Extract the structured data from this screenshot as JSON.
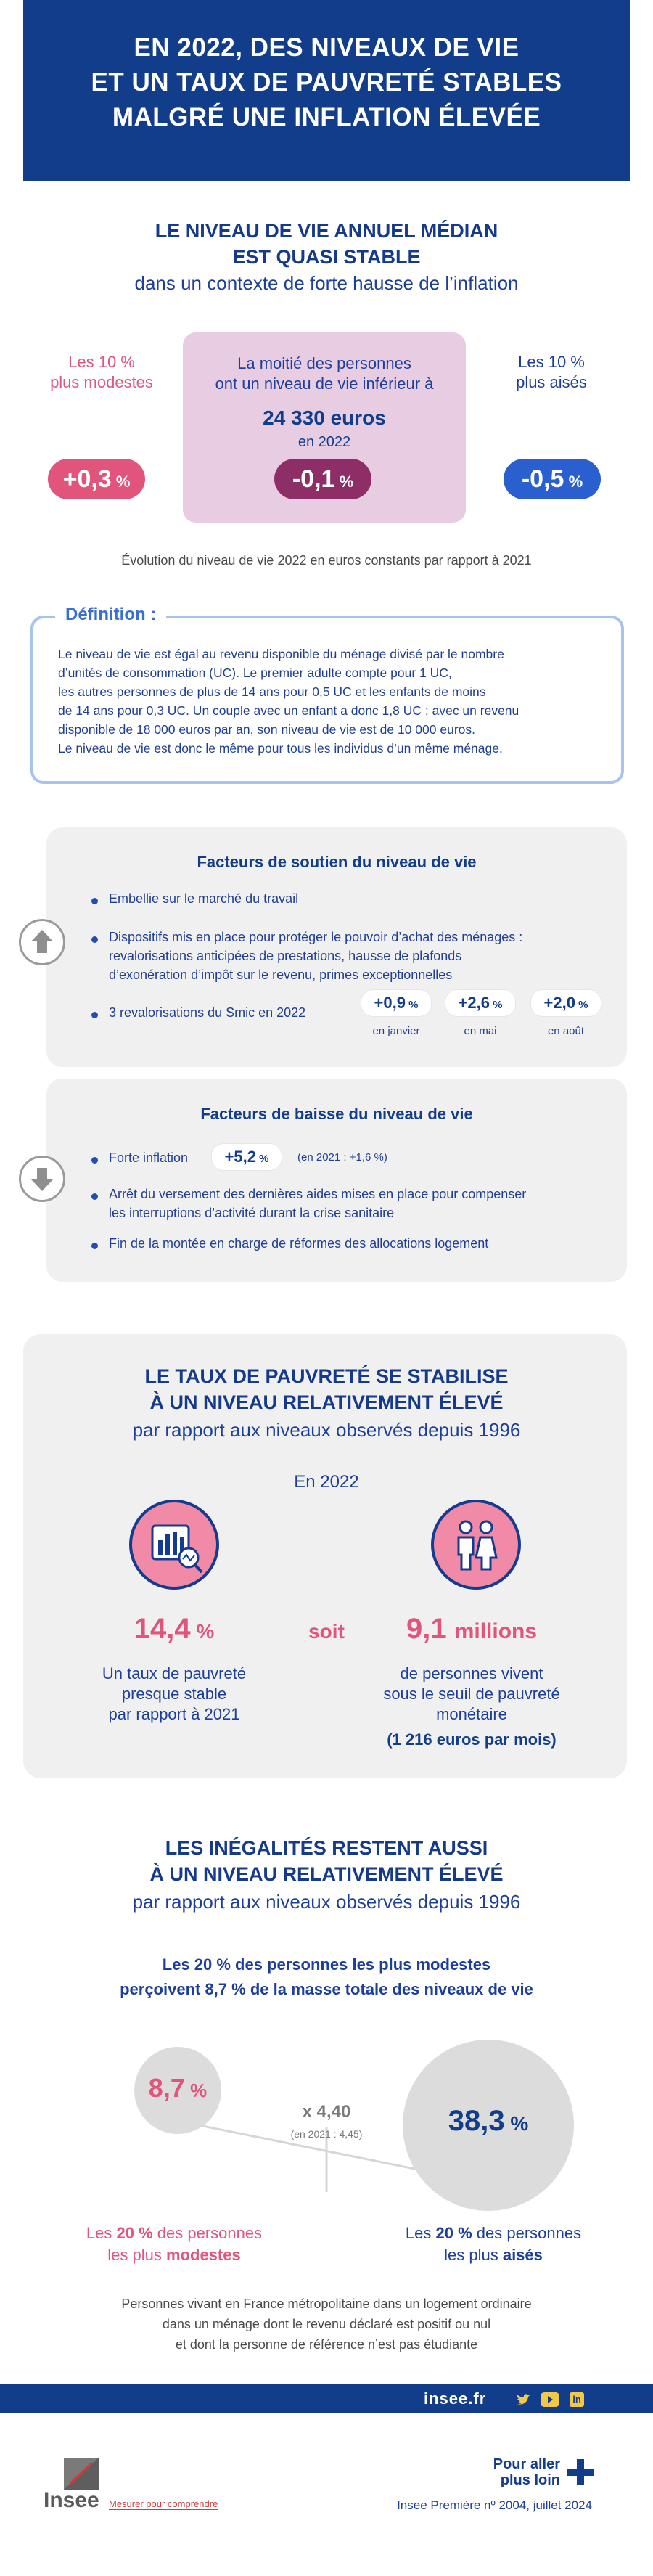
{
  "header": {
    "lines": [
      "EN 2022, DES NIVEAUX DE VIE",
      "ET UN TAUX DE PAUVRETÉ STABLES",
      "MALGRÉ UNE INFLATION ÉLEVÉE"
    ]
  },
  "median": {
    "title_lines": [
      "LE NIVEAU DE VIE ANNUEL MÉDIAN",
      "EST QUASI STABLE"
    ],
    "subtitle": "dans un contexte de forte hausse de l’inflation",
    "left_label": [
      "Les 10 %",
      "plus modestes"
    ],
    "middle_label": [
      "La moitié des personnes",
      "ont un niveau de vie inférieur à"
    ],
    "middle_value": "24 330 euros",
    "middle_year": "en 2022",
    "right_label": [
      "Les 10 %",
      "plus aisés"
    ],
    "left_change": "+0,3",
    "middle_change": "-0,1",
    "right_change": "-0,5",
    "pct": "%",
    "caption": "Évolution du niveau de vie 2022 en euros constants par rapport à 2021"
  },
  "definition": {
    "label": "Définition :",
    "lines": [
      "Le niveau de vie est égal au revenu disponible du ménage divisé par le nombre",
      "d’unités de consommation (UC). Le premier adulte compte pour 1 UC,",
      "les autres personnes de plus de 14 ans pour 0,5 UC et les enfants de moins",
      "de 14 ans pour 0,3 UC. Un couple avec un enfant a donc 1,8 UC : avec un revenu",
      "disponible de 18 000 euros par an, son niveau de vie est de 10 000 euros.",
      "Le niveau de vie est donc le même pour tous les individus d’un même ménage."
    ]
  },
  "support": {
    "title": "Facteurs de soutien du niveau de vie",
    "item1": "Embellie sur le marché du travail",
    "item2_lines": [
      "Dispositifs mis en place pour protéger le pouvoir d’achat des ménages :",
      "revalorisations anticipées de prestations, hausse de plafonds",
      "d’exonération d’impôt sur le revenu, primes exceptionnelles"
    ],
    "item3": "3 revalorisations du Smic en 2022",
    "smic": [
      {
        "value": "+0,9",
        "when": "en janvier"
      },
      {
        "value": "+2,6",
        "when": "en mai"
      },
      {
        "value": "+2,0",
        "when": "en août"
      }
    ]
  },
  "decline": {
    "title": "Facteurs de baisse du niveau de vie",
    "inflation_label": "Forte inflation",
    "inflation_value": "+5,2",
    "inflation_note": "(en 2021 : +1,6 %)",
    "item2_lines": [
      "Arrêt du versement des dernières aides mises en place pour compenser",
      "les interruptions d’activité durant la crise sanitaire"
    ],
    "item3": "Fin de la montée en charge de réformes des allocations logement"
  },
  "poverty": {
    "title_lines": [
      "LE TAUX DE PAUVRETÉ SE STABILISE",
      "À UN NIVEAU RELATIVEMENT ÉLEVÉ"
    ],
    "subtitle": "par rapport aux niveaux observés depuis 1996",
    "year": "En 2022",
    "rate": "14,4",
    "pct": "%",
    "soit": "soit",
    "count": "9,1",
    "count_unit": "millions",
    "rate_desc": [
      "Un taux de pauvreté",
      "presque stable",
      "par rapport à 2021"
    ],
    "count_desc": [
      "de personnes vivent",
      "sous le seuil de pauvreté",
      "monétaire"
    ],
    "threshold": "(1 216 euros par mois)"
  },
  "inequality": {
    "title_lines": [
      "LES INÉGALITÉS RESTENT AUSSI",
      "À UN NIVEAU RELATIVEMENT ÉLEVÉ"
    ],
    "subtitle": "par rapport aux niveaux observés depuis 1996",
    "lead_lines": [
      "Les 20 % des personnes les plus modestes",
      "perçoivent 8,7 % de la masse totale des niveaux de vie"
    ],
    "low_value": "8,7",
    "high_value": "38,3",
    "pct": "%",
    "ratio": "x 4,40",
    "ratio_note": "(en 2021 : 4,45)",
    "low_label_a": "Les ",
    "low_label_b": "20 %",
    "low_label_c": " des personnes",
    "low_label_d": "les plus ",
    "low_label_e": "modestes",
    "high_label_a": "Les ",
    "high_label_b": "20 %",
    "high_label_c": " des personnes",
    "high_label_d": "les plus ",
    "high_label_e": "aisés",
    "note_lines": [
      "Personnes vivant en France métropolitaine dans un logement ordinaire",
      "dans un ménage dont le revenu déclaré est positif ou nul",
      "et dont la personne de référence n’est pas étudiante"
    ]
  },
  "footer": {
    "site": "insee.fr",
    "more_lines": [
      "Pour aller",
      "plus loin"
    ],
    "publication": "Insee Première nº 2004, juillet 2024",
    "logo_text": "Insee",
    "tagline": "Mesurer pour comprendre"
  },
  "colors": {
    "navy": "#123d8b",
    "pink": "#e1557c",
    "blue": "#2a5fd0",
    "mauve": "#8e2e67",
    "lavender": "#e8cce2"
  }
}
